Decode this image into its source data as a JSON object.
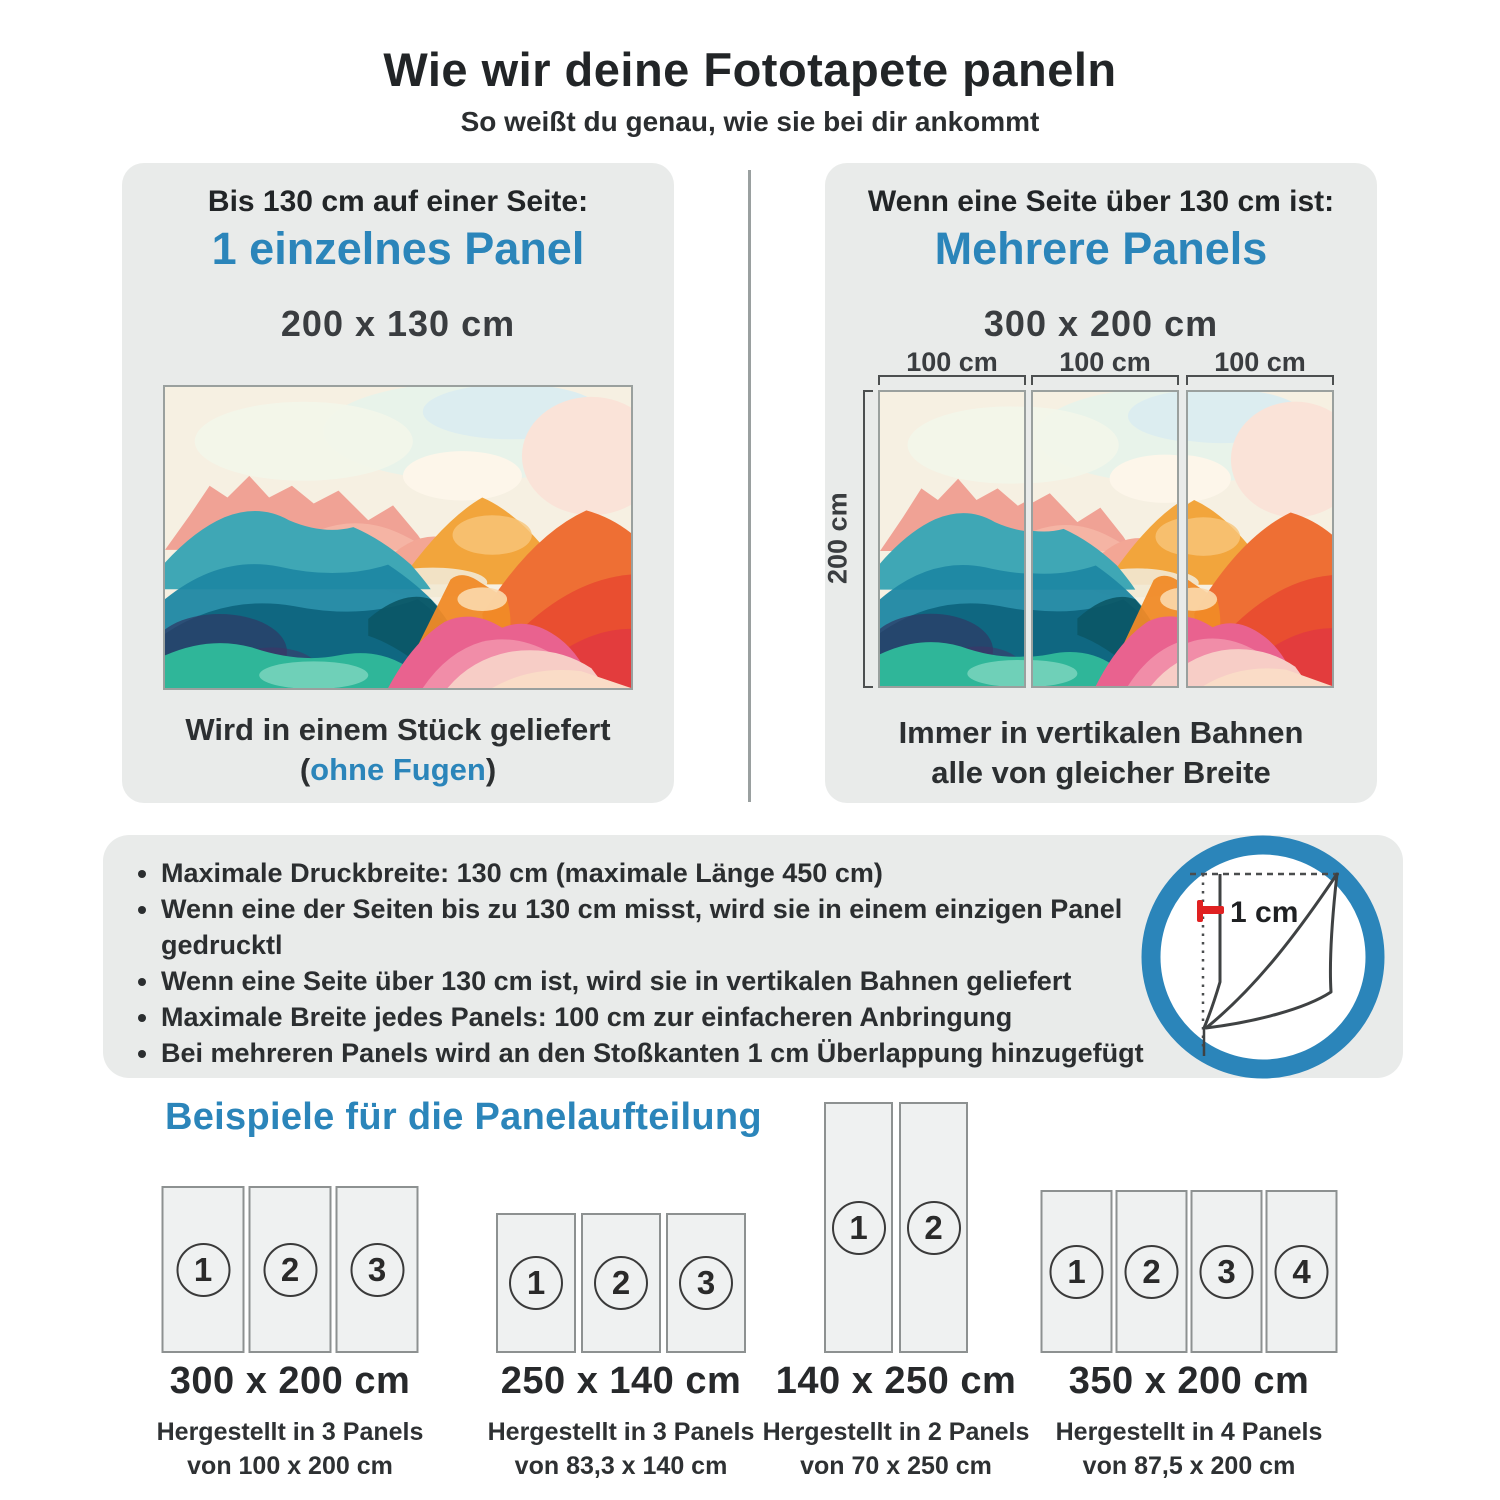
{
  "header": {
    "title": "Wie wir deine Fototapete paneln",
    "subtitle": "So weißt du genau, wie sie bei dir ankommt"
  },
  "cards": {
    "single": {
      "condition": "Bis 130 cm auf einer Seite:",
      "headline": "1 einzelnes Panel",
      "size": "200 x 130 cm",
      "caption_line1": "Wird in einem Stück geliefert",
      "caption_open": "(",
      "caption_highlight": "ohne Fugen",
      "caption_close": ")"
    },
    "multi": {
      "condition": "Wenn eine Seite über 130 cm ist:",
      "headline": "Mehrere Panels",
      "size": "300 x 200 cm",
      "width_labels": [
        "100 cm",
        "100 cm",
        "100 cm"
      ],
      "height_label": "200 cm",
      "caption_line1": "Immer in vertikalen Bahnen",
      "caption_line2": "alle von gleicher Breite"
    }
  },
  "info_box": {
    "bullets": [
      "Maximale Druckbreite: 130 cm (maximale Länge 450 cm)",
      "Wenn eine der Seiten bis zu 130 cm misst, wird sie in einem einzigen Panel gedrucktl",
      "Wenn eine Seite über 130 cm ist, wird sie in vertikalen Bahnen geliefert",
      "Maximale Breite jedes Panels: 100 cm zur einfacheren Anbringung",
      "Bei mehreren Panels wird an den Stoßkanten 1 cm Überlappung hinzugefügt"
    ],
    "overlap_icon_label": "1 cm"
  },
  "examples": {
    "heading": "Beispiele für die Panelaufteilung",
    "items": [
      {
        "size": "300 x 200 cm",
        "made": "Hergestellt in 3 Panels",
        "from": "von 100 x 200 cm",
        "panels": [
          "1",
          "2",
          "3"
        ]
      },
      {
        "size": "250 x 140 cm",
        "made": "Hergestellt in 3 Panels",
        "from": "von 83,3 x 140 cm",
        "panels": [
          "1",
          "2",
          "3"
        ]
      },
      {
        "size": "140 x 250 cm",
        "made": "Hergestellt in 2 Panels",
        "from": "von 70 x 250 cm",
        "panels": [
          "1",
          "2"
        ]
      },
      {
        "size": "350 x 200 cm",
        "made": "Hergestellt in 4 Panels",
        "from": "von 87,5 x 200 cm",
        "panels": [
          "1",
          "2",
          "3",
          "4"
        ]
      }
    ]
  },
  "colors": {
    "accent_blue": "#2b85ba",
    "text_dark": "#232628",
    "card_background": "#e9ebea",
    "red_mark": "#e02121"
  }
}
